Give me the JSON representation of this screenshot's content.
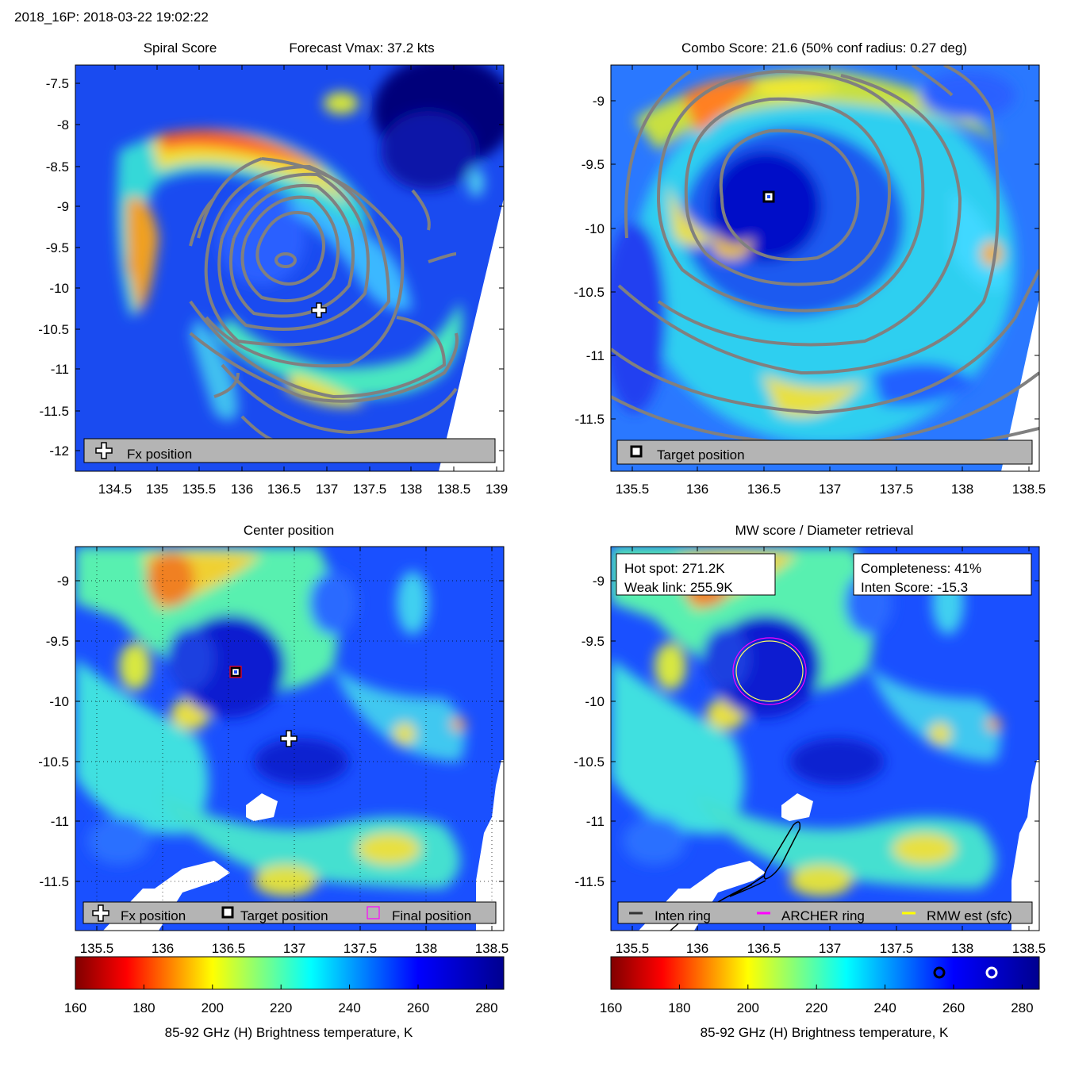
{
  "header": "2018_16P: 2018-03-22 19:02:22",
  "panels": {
    "spiral": {
      "title_left": "Spiral Score",
      "title_right": "Forecast Vmax: 37.2 kts",
      "legend": [
        "Fx position"
      ],
      "x_ticks": [
        "134.5",
        "135",
        "135.5",
        "136",
        "136.5",
        "137",
        "137.5",
        "138",
        "138.5",
        "139"
      ],
      "y_ticks": [
        "-7.5",
        "-8",
        "-8.5",
        "-9",
        "-9.5",
        "-10",
        "-10.5",
        "-11",
        "-11.5",
        "-12"
      ]
    },
    "combo": {
      "title": "Combo Score: 21.6  (50% conf radius: 0.27 deg)",
      "legend": [
        "Target position"
      ],
      "x_ticks": [
        "135.5",
        "136",
        "136.5",
        "137",
        "137.5",
        "138",
        "138.5"
      ],
      "y_ticks": [
        "-9",
        "-9.5",
        "-10",
        "-10.5",
        "-11",
        "-11.5"
      ]
    },
    "center": {
      "title": "Center position",
      "legend": [
        "Fx position",
        "Target position",
        "Final position"
      ],
      "x_ticks": [
        "135.5",
        "136",
        "136.5",
        "137",
        "137.5",
        "138",
        "138.5"
      ],
      "y_ticks": [
        "-9",
        "-9.5",
        "-10",
        "-10.5",
        "-11",
        "-11.5"
      ]
    },
    "mw": {
      "title": "MW score / Diameter retrieval",
      "box_left": [
        "Hot spot: 271.2K",
        "Weak link: 255.9K"
      ],
      "box_right": [
        "Completeness: 41%",
        "Inten Score: -15.3"
      ],
      "legend": [
        "Inten ring",
        "ARCHER ring",
        "RMW est (sfc)"
      ],
      "x_ticks": [
        "135.5",
        "136",
        "136.5",
        "137",
        "137.5",
        "138",
        "138.5"
      ],
      "y_ticks": [
        "-9",
        "-9.5",
        "-10",
        "-10.5",
        "-11",
        "-11.5"
      ]
    }
  },
  "colorbar": {
    "ticks": [
      "160",
      "180",
      "200",
      "220",
      "240",
      "260",
      "280"
    ],
    "label": "85-92 GHz (H) Brightness temperature, K",
    "range": [
      160,
      285
    ]
  },
  "chart_data": [
    {
      "type": "heatmap",
      "title": "Spiral Score",
      "subtitle": "Forecast Vmax: 37.2 kts",
      "xlim": [
        134.1,
        139.2
      ],
      "ylim": [
        -12.25,
        -7.25
      ],
      "markers": [
        {
          "name": "Fx position",
          "x": 136.95,
          "y": -10.3
        }
      ]
    },
    {
      "type": "heatmap",
      "title": "Combo Score: 21.6  (50% conf radius: 0.27 deg)",
      "xlim": [
        135.3,
        138.55
      ],
      "ylim": [
        -11.9,
        -8.75
      ],
      "markers": [
        {
          "name": "Target position",
          "x": 136.55,
          "y": -9.77
        }
      ]
    },
    {
      "type": "heatmap",
      "title": "Center position",
      "xlim": [
        135.3,
        138.55
      ],
      "ylim": [
        -11.9,
        -8.75
      ],
      "markers": [
        {
          "name": "Fx position",
          "x": 136.95,
          "y": -10.32
        },
        {
          "name": "Target position",
          "x": 136.55,
          "y": -9.77
        },
        {
          "name": "Final position",
          "x": 136.55,
          "y": -9.77
        }
      ]
    },
    {
      "type": "heatmap",
      "title": "MW score / Diameter retrieval",
      "xlim": [
        135.3,
        138.55
      ],
      "ylim": [
        -11.9,
        -8.75
      ],
      "colorbar_markers": [
        {
          "name": "Weak link",
          "value": 255.9
        },
        {
          "name": "Hot spot",
          "value": 271.2
        }
      ]
    }
  ],
  "colors": {
    "frame": "#000000",
    "contour": "#808080",
    "legend_bg": "#b4b4b4",
    "archer": "#ff00ff",
    "rmw": "#ffff00",
    "inten": "#333333"
  }
}
